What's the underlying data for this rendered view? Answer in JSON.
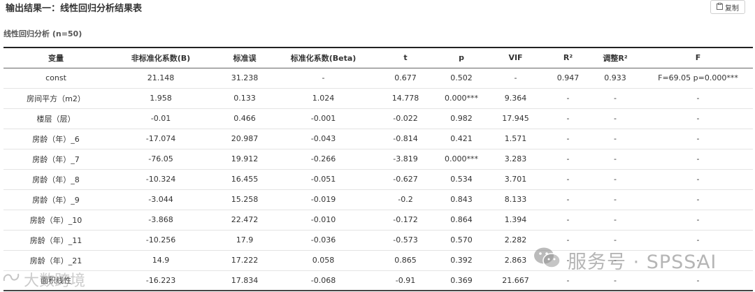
{
  "header": {
    "title": "输出结果一：线性回归分析结果表",
    "copy_label": "复制",
    "subtitle": "线性回归分析 (n=50)"
  },
  "table": {
    "columns": [
      "变量",
      "非标准化系数(B)",
      "标准误",
      "标准化系数(Beta)",
      "t",
      "p",
      "VIF",
      "R²",
      "调整R²",
      "F"
    ],
    "rows": [
      [
        "const",
        "21.148",
        "31.238",
        "-",
        "0.677",
        "0.502",
        "-",
        "0.947",
        "0.933",
        "F=69.05 p=0.000***"
      ],
      [
        "房间平方（m2）",
        "1.958",
        "0.133",
        "1.024",
        "14.778",
        "0.000***",
        "9.364",
        "-",
        "-",
        "-"
      ],
      [
        "楼层（层）",
        "-0.01",
        "0.466",
        "-0.001",
        "-0.022",
        "0.982",
        "17.945",
        "-",
        "-",
        "-"
      ],
      [
        "房龄（年）_6",
        "-17.074",
        "20.987",
        "-0.043",
        "-0.814",
        "0.421",
        "1.571",
        "-",
        "-",
        "-"
      ],
      [
        "房龄（年）_7",
        "-76.05",
        "19.912",
        "-0.266",
        "-3.819",
        "0.000***",
        "3.283",
        "-",
        "-",
        "-"
      ],
      [
        "房龄（年）_8",
        "-10.324",
        "16.455",
        "-0.051",
        "-0.627",
        "0.534",
        "3.701",
        "-",
        "-",
        "-"
      ],
      [
        "房龄（年）_9",
        "-3.044",
        "15.258",
        "-0.019",
        "-0.2",
        "0.843",
        "8.133",
        "-",
        "-",
        "-"
      ],
      [
        "房龄（年）_10",
        "-3.868",
        "22.472",
        "-0.010",
        "-0.172",
        "0.864",
        "1.394",
        "-",
        "-",
        "-"
      ],
      [
        "房龄（年）_11",
        "-10.256",
        "17.9",
        "-0.036",
        "-0.573",
        "0.570",
        "2.282",
        "-",
        "-",
        "-"
      ],
      [
        "房龄（年）_21",
        "14.9",
        "17.222",
        "0.058",
        "0.865",
        "0.392",
        "2.863",
        "-",
        "-",
        "-"
      ],
      [
        "面积线性",
        "-16.223",
        "17.834",
        "-0.068",
        "-0.91",
        "0.369",
        "21.667",
        "-",
        "-",
        "-"
      ]
    ]
  },
  "watermark": {
    "text": "服务号 · SPSSAI",
    "text2": "大数跨境"
  }
}
